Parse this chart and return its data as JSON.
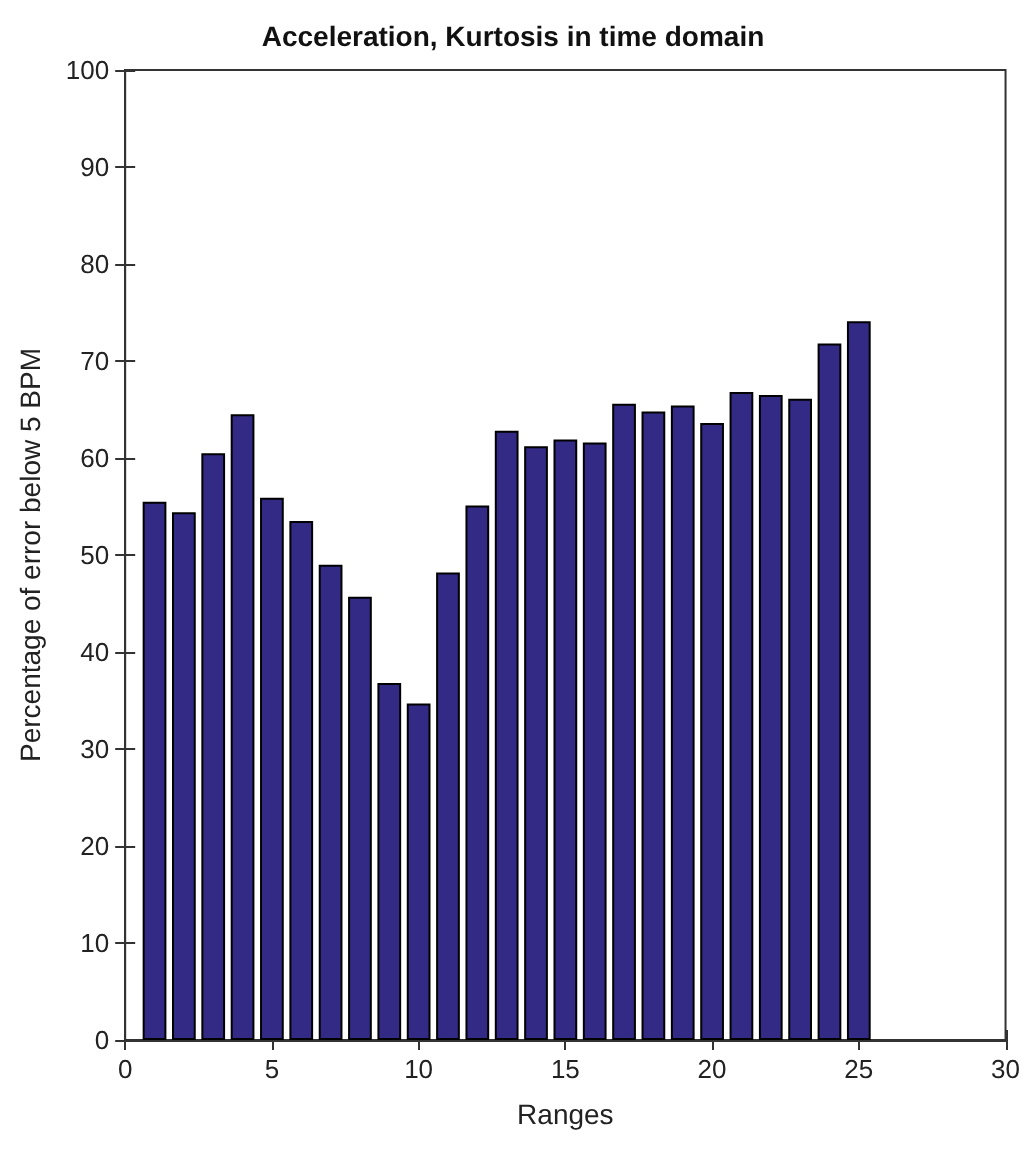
{
  "chart_data": {
    "type": "bar",
    "title": "Acceleration, Kurtosis in time domain",
    "xlabel": "Ranges",
    "ylabel": "Percentage of error below 5 BPM",
    "x": [
      1,
      2,
      3,
      4,
      5,
      6,
      7,
      8,
      9,
      10,
      11,
      12,
      13,
      14,
      15,
      16,
      17,
      18,
      19,
      20,
      21,
      22,
      23,
      24,
      25
    ],
    "values": [
      55.5,
      54.4,
      60.5,
      64.5,
      55.9,
      53.5,
      49.0,
      45.7,
      36.8,
      34.7,
      48.2,
      55.1,
      62.8,
      61.2,
      61.9,
      61.6,
      65.6,
      64.8,
      65.4,
      63.6,
      66.8,
      66.5,
      66.1,
      71.8,
      74.1
    ],
    "color": "#332a85",
    "xlim": [
      0,
      30
    ],
    "xticks": [
      0,
      5,
      10,
      15,
      20,
      25,
      30
    ],
    "ylim": [
      0,
      100
    ],
    "yticks": [
      0,
      10,
      20,
      30,
      40,
      50,
      60,
      70,
      80,
      90,
      100
    ]
  }
}
